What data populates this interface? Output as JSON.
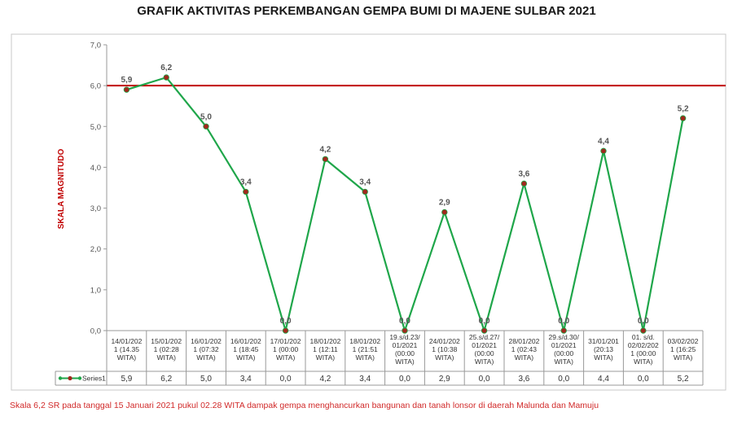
{
  "chart_data": {
    "type": "line",
    "title": "GRAFIK AKTIVITAS PERKEMBANGAN GEMPA BUMI DI MAJENE SULBAR 2021",
    "ylabel": "SKALA MAGNITUDO",
    "ylim": [
      0,
      7
    ],
    "yticks": [
      "0,0",
      "1,0",
      "2,0",
      "3,0",
      "4,0",
      "5,0",
      "6,0",
      "7,0"
    ],
    "reference_line": {
      "value": 6.0,
      "color": "#c00000"
    },
    "categories": [
      [
        "14/01/202",
        "1 (14.35",
        "WITA)"
      ],
      [
        "15/01/202",
        "1 (02:28",
        "WITA)"
      ],
      [
        "16/01/202",
        "1 (07:32",
        "WITA)"
      ],
      [
        "16/01/202",
        "1 (18:45",
        "WITA)"
      ],
      [
        "17/01/202",
        "1 (00:00",
        "WITA)"
      ],
      [
        "18/01/202",
        "1 (12:11",
        "WITA)"
      ],
      [
        "18/01/202",
        "1 (21:51",
        "WITA)"
      ],
      [
        "19.s/d.23/",
        "01/2021",
        "(00:00",
        "WITA)"
      ],
      [
        "24/01/202",
        "1 (10:38",
        "WITA)"
      ],
      [
        "25.s/d.27/",
        "01/2021",
        "(00:00",
        "WITA)"
      ],
      [
        "28/01/202",
        "1 (02:43",
        "WITA)"
      ],
      [
        "29.s/d.30/",
        "01/2021",
        "(00:00",
        "WITA)"
      ],
      [
        "31/01/201",
        "(20:13",
        "WITA)"
      ],
      [
        "01. s/d.",
        "02/02/202",
        "1 (00:00",
        "WITA)"
      ],
      [
        "03/02/202",
        "1 (16:25",
        "WITA)"
      ]
    ],
    "series": [
      {
        "name": "Series1",
        "values": [
          5.9,
          6.2,
          5.0,
          3.4,
          0.0,
          4.2,
          3.4,
          0.0,
          2.9,
          0.0,
          3.6,
          0.0,
          4.4,
          0.0,
          5.2
        ],
        "labels": [
          "5,9",
          "6,2",
          "5,0",
          "3,4",
          "0,0",
          "4,2",
          "3,4",
          "0,0",
          "2,9",
          "0,0",
          "3,6",
          "0,0",
          "4,4",
          "0,0",
          "5,2"
        ],
        "line_color": "#1fa64a",
        "marker_color": "#a0281e"
      }
    ],
    "grid": false,
    "legend": "data-table"
  },
  "footnote": "Skala 6,2  SR pada tanggal 15 Januari 2021 pukul 02.28 WITA dampak gempa menghancurkan bangunan dan tanah lonsor di daerah Malunda dan Mamuju"
}
